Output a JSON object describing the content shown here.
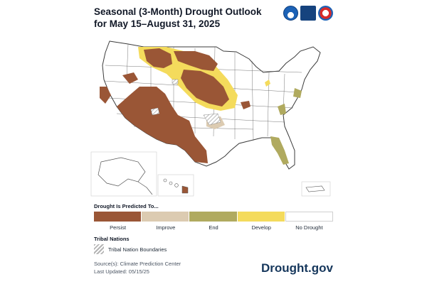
{
  "title": "Seasonal (3-Month) Drought Outlook for May 15–August 31, 2025",
  "logos": {
    "noaa": "NOAA",
    "nidis": "NIDIS",
    "nws": "NWS"
  },
  "map": {
    "regions": [
      "Persist",
      "Improve",
      "End",
      "Develop",
      "No Drought"
    ]
  },
  "legend": {
    "title": "Drought Is Predicted To...",
    "items": [
      {
        "label": "Persist",
        "color": "#9a5636"
      },
      {
        "label": "Improve",
        "color": "#dccbb1"
      },
      {
        "label": "End",
        "color": "#b0aa5f"
      },
      {
        "label": "Develop",
        "color": "#f4db5c"
      },
      {
        "label": "No Drought",
        "color": "#ffffff"
      }
    ]
  },
  "tribal": {
    "title": "Tribal Nations",
    "label": "Tribal Nation Boundaries"
  },
  "source": {
    "line1": "Source(s): Climate Prediction Center",
    "line2": "Last Updated: 05/15/25"
  },
  "brand": "Drought.gov"
}
